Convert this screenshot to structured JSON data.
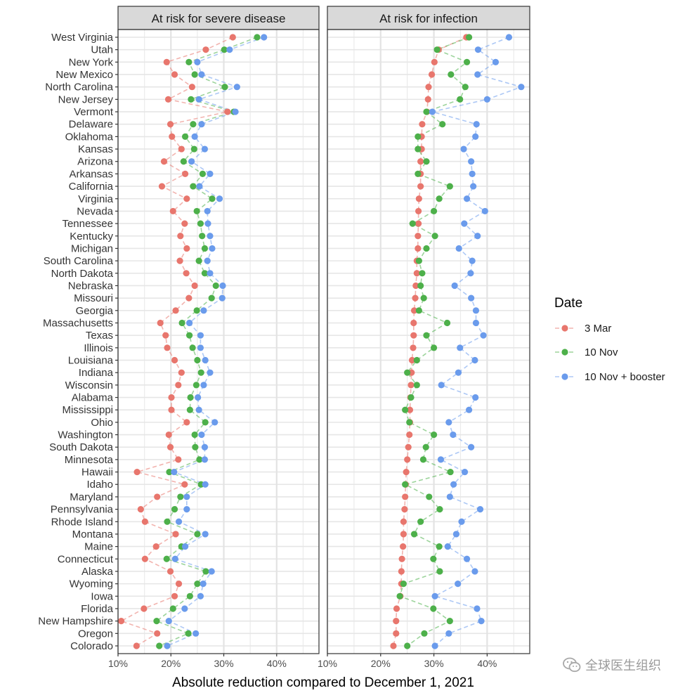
{
  "chart_data": {
    "type": "scatter",
    "xlabel": "Absolute reduction compared to December 1, 2021",
    "xlim": [
      10,
      48
    ],
    "xticks": [
      10,
      20,
      30,
      40
    ],
    "x_tick_labels": [
      "10%",
      "20%",
      "30%",
      "40%"
    ],
    "panels": [
      {
        "title": "At risk for severe disease"
      },
      {
        "title": "At risk for infection"
      }
    ],
    "states": [
      "West Virginia",
      "Utah",
      "New York",
      "New Mexico",
      "North Carolina",
      "New Jersey",
      "Vermont",
      "Delaware",
      "Oklahoma",
      "Kansas",
      "Arizona",
      "Arkansas",
      "California",
      "Virginia",
      "Nevada",
      "Tennessee",
      "Kentucky",
      "Michigan",
      "South Carolina",
      "North Dakota",
      "Nebraska",
      "Missouri",
      "Georgia",
      "Massachusetts",
      "Texas",
      "Illinois",
      "Louisiana",
      "Indiana",
      "Wisconsin",
      "Alabama",
      "Mississippi",
      "Ohio",
      "Washington",
      "South Dakota",
      "Minnesota",
      "Hawaii",
      "Idaho",
      "Maryland",
      "Pennsylvania",
      "Rhode Island",
      "Montana",
      "Maine",
      "Connecticut",
      "Alaska",
      "Wyoming",
      "Iowa",
      "Florida",
      "New Hampshire",
      "Oregon",
      "Colorado"
    ],
    "legend": {
      "title": "Date",
      "position": "right",
      "entries": [
        "3 Mar",
        "10 Nov",
        "10 Nov + booster"
      ]
    },
    "series_colors": [
      "#E8766D",
      "#4DB04A",
      "#6A9BEC"
    ],
    "series": {
      "severe": {
        "3 Mar": [
          31.7,
          26.6,
          19.2,
          20.7,
          24.0,
          19.5,
          30.7,
          19.9,
          20.2,
          22.0,
          18.7,
          22.7,
          18.3,
          23.0,
          20.4,
          22.6,
          21.8,
          23.0,
          21.7,
          22.9,
          24.5,
          23.4,
          20.9,
          18.0,
          19.0,
          19.3,
          20.7,
          22.0,
          21.4,
          20.1,
          20.1,
          23.0,
          19.6,
          19.9,
          21.4,
          13.6,
          22.6,
          17.4,
          14.3,
          15.1,
          20.9,
          17.2,
          15.1,
          19.9,
          21.5,
          20.7,
          14.9,
          10.6,
          17.4,
          13.5
        ],
        "10 Nov": [
          36.3,
          30.1,
          23.4,
          24.5,
          30.2,
          23.8,
          31.9,
          24.2,
          22.7,
          24.4,
          22.4,
          26.0,
          24.2,
          27.8,
          24.9,
          25.6,
          25.9,
          26.4,
          25.3,
          26.4,
          28.5,
          27.7,
          24.9,
          22.1,
          23.5,
          24.1,
          25.0,
          25.7,
          24.8,
          23.7,
          23.6,
          26.5,
          24.5,
          24.6,
          25.4,
          19.7,
          25.7,
          21.8,
          20.7,
          19.3,
          25.0,
          22.0,
          19.2,
          26.6,
          25.0,
          23.6,
          20.4,
          17.3,
          23.3,
          17.8
        ],
        "10 Nov + booster": [
          37.6,
          31.1,
          25.0,
          25.8,
          32.5,
          25.3,
          32.2,
          25.8,
          24.5,
          26.4,
          23.9,
          27.4,
          25.4,
          29.2,
          26.9,
          27.0,
          27.4,
          27.8,
          26.9,
          27.4,
          29.8,
          29.7,
          26.2,
          23.5,
          25.6,
          25.6,
          26.5,
          27.4,
          26.2,
          25.1,
          25.3,
          28.3,
          25.8,
          26.4,
          26.4,
          20.6,
          26.5,
          23.0,
          23.0,
          21.5,
          26.5,
          22.7,
          20.8,
          27.7,
          26.1,
          25.6,
          22.6,
          19.6,
          24.7,
          19.3
        ]
      },
      "infection": {
        "3 Mar": [
          36.1,
          30.9,
          30.1,
          29.6,
          29.0,
          28.9,
          28.7,
          27.8,
          27.7,
          27.7,
          27.5,
          27.5,
          27.5,
          27.2,
          27.1,
          27.1,
          27.0,
          27.0,
          26.8,
          26.8,
          26.6,
          26.5,
          26.3,
          26.2,
          26.2,
          26.1,
          25.9,
          25.8,
          25.7,
          25.6,
          25.5,
          25.5,
          25.4,
          25.2,
          25.0,
          24.8,
          24.7,
          24.6,
          24.5,
          24.3,
          24.3,
          24.2,
          24.0,
          23.9,
          23.9,
          23.7,
          23.0,
          22.9,
          22.9,
          22.4
        ],
        "10 Nov": [
          36.6,
          30.6,
          36.2,
          33.2,
          35.9,
          34.9,
          28.6,
          31.6,
          27.0,
          27.0,
          28.6,
          27.0,
          33.0,
          31.0,
          30.0,
          26.0,
          30.2,
          28.6,
          27.2,
          27.8,
          27.5,
          28.1,
          27.2,
          32.5,
          28.6,
          30.0,
          26.8,
          25.0,
          26.8,
          25.7,
          24.6,
          25.4,
          30.0,
          28.5,
          28.0,
          33.1,
          24.6,
          29.1,
          31.1,
          27.5,
          26.3,
          31.0,
          29.9,
          31.1,
          24.3,
          23.6,
          29.9,
          33.0,
          28.2,
          25.0
        ],
        "10 Nov + booster": [
          44.1,
          38.3,
          41.6,
          38.2,
          46.4,
          40.0,
          29.7,
          38.0,
          37.8,
          35.6,
          37.0,
          37.2,
          37.4,
          36.2,
          39.6,
          35.7,
          38.2,
          34.7,
          37.2,
          36.9,
          33.9,
          37.0,
          37.9,
          37.9,
          39.3,
          34.9,
          37.7,
          34.6,
          31.4,
          37.8,
          36.6,
          32.8,
          33.6,
          37.0,
          31.3,
          35.8,
          33.7,
          33.0,
          38.7,
          35.2,
          34.2,
          32.6,
          36.2,
          37.7,
          34.5,
          30.2,
          38.1,
          38.9,
          32.8,
          30.2
        ]
      }
    }
  },
  "watermark": {
    "text": "全球医生组织",
    "icon": "wechat-icon"
  }
}
